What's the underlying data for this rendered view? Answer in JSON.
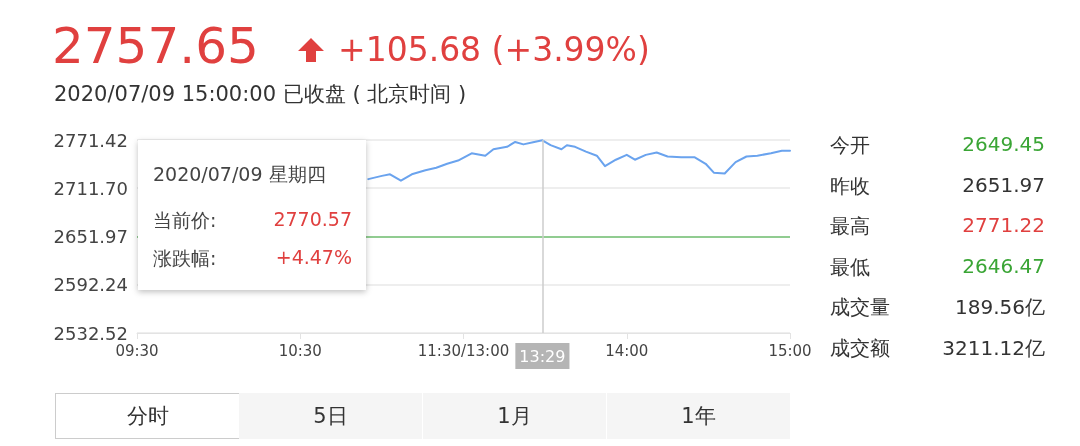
{
  "chart_data": {
    "type": "line",
    "title": "2757.65",
    "subtitle": "2020/07/09 15:00:00 已收盘 ( 北京时间 )",
    "categories": [
      "09:30",
      null,
      null,
      null,
      null,
      null,
      null,
      null,
      null,
      null,
      null,
      null,
      null,
      null,
      null,
      null,
      null,
      null,
      null,
      null,
      null,
      null,
      null,
      null,
      null,
      null,
      null,
      null,
      null,
      null,
      null,
      null,
      null,
      null,
      null,
      null,
      null,
      null,
      null,
      null,
      null,
      null,
      null,
      null,
      null,
      null,
      null,
      null,
      null,
      null,
      null,
      null,
      null,
      null,
      null,
      null,
      null,
      null,
      null,
      null,
      "10:30",
      null,
      null,
      null,
      null,
      null,
      null,
      null,
      null,
      null,
      null,
      null,
      null,
      null,
      null,
      null,
      null,
      null,
      null,
      null,
      null,
      null,
      null,
      null,
      null,
      null,
      null,
      null,
      null,
      null,
      null,
      null,
      null,
      null,
      null,
      null,
      null,
      null,
      null,
      null,
      null,
      null,
      null,
      null,
      null,
      null,
      null,
      null,
      null,
      null,
      null,
      null,
      null,
      null,
      null,
      null,
      null,
      null,
      null,
      null,
      "11:30/13:00",
      null,
      null,
      null,
      null,
      null,
      null,
      null,
      null,
      null,
      null,
      null,
      null,
      null,
      null,
      null,
      null,
      null,
      null,
      null,
      null,
      null,
      null,
      null,
      null,
      null,
      null,
      null,
      null,
      "13:29",
      null,
      null,
      null,
      null,
      null,
      null,
      null,
      null,
      null,
      null,
      null,
      null,
      null,
      null,
      null,
      null,
      null,
      null,
      null,
      null,
      null,
      null,
      null,
      null,
      null,
      null,
      null,
      null,
      null,
      null,
      "14:00",
      null,
      null,
      null,
      null,
      null,
      null,
      null,
      null,
      null,
      null,
      null,
      null,
      null,
      null,
      null,
      null,
      null,
      null,
      null,
      null,
      null,
      null,
      null,
      null,
      null,
      null,
      null,
      null,
      null,
      null,
      null,
      null,
      null,
      null,
      null,
      null,
      null,
      null,
      null,
      null,
      null,
      null,
      null,
      null,
      null,
      null,
      null,
      null,
      null,
      null,
      null,
      null,
      null,
      null,
      null,
      null,
      null,
      null,
      null,
      "15:00"
    ],
    "series": [
      {
        "color": "#6aa3ee",
        "values": [
          null,
          null,
          null,
          null,
          null,
          null,
          null,
          null,
          null,
          null,
          null,
          null,
          null,
          null,
          null,
          null,
          null,
          null,
          null,
          null,
          null,
          null,
          null,
          null,
          null,
          null,
          null,
          null,
          null,
          null,
          null,
          null,
          null,
          null,
          null,
          null,
          null,
          null,
          null,
          null,
          null,
          null,
          null,
          null,
          null,
          null,
          null,
          null,
          null,
          null,
          null,
          null,
          null,
          null,
          null,
          null,
          null,
          null,
          null,
          null,
          null,
          null,
          null,
          null,
          null,
          null,
          null,
          null,
          null,
          null,
          null,
          null,
          null,
          null,
          null,
          null,
          null,
          null,
          null,
          null,
          null,
          null,
          null,
          null,
          null,
          2723,
          null,
          null,
          null,
          null,
          2727,
          null,
          null,
          2729,
          null,
          null,
          null,
          2721,
          null,
          null,
          null,
          2729,
          null,
          null,
          null,
          null,
          2734,
          null,
          null,
          null,
          2737,
          null,
          null,
          null,
          2742,
          null,
          null,
          null,
          2746,
          null,
          null,
          null,
          null,
          2755,
          null,
          null,
          null,
          null,
          2752,
          null,
          null,
          2760,
          null,
          null,
          null,
          null,
          2763,
          null,
          null,
          2769,
          null,
          null,
          2766,
          null,
          null,
          null,
          2769,
          null,
          null,
          2771,
          null,
          null,
          2765,
          null,
          null,
          null,
          2760,
          null,
          2765,
          null,
          null,
          2763,
          null,
          null,
          null,
          2757,
          null,
          null,
          null,
          2752,
          null,
          null,
          2739,
          null,
          null,
          null,
          2747,
          null,
          null,
          null,
          2753,
          null,
          null,
          2747,
          null,
          null,
          null,
          2753,
          null,
          null,
          null,
          2756,
          null,
          null,
          null,
          2751,
          null,
          null,
          null,
          null,
          2750,
          null,
          null,
          null,
          null,
          2750,
          null,
          null,
          null,
          2742,
          null,
          null,
          2731,
          null,
          null,
          null,
          2730,
          null,
          null,
          null,
          2744,
          null,
          null,
          null,
          2751,
          null,
          null,
          null,
          2752,
          null,
          null,
          null,
          null,
          2755,
          null,
          null,
          null,
          2758,
          null,
          null,
          2758
        ]
      }
    ],
    "ylim": [
      2532.52,
      2771.42
    ],
    "yticks": [
      2532.52,
      2592.24,
      2651.97,
      {
        "value": 2711.7,
        "label": "2711.70"
      },
      2771.42
    ],
    "grid": "y",
    "marker": "none",
    "line_style": "solid",
    "ref_lines": [
      {
        "axis": "y",
        "value": 2651.97,
        "color": "#72c072"
      },
      {
        "axis": "x",
        "value": "13:29",
        "color": "#cccccc"
      }
    ],
    "annotations": [
      "+105.68 (+3.99%)",
      "2020/07/09 星期四",
      "当前价:",
      "2770.57",
      "涨跌幅:",
      "+4.47%",
      "今开",
      "2649.45",
      "昨收",
      "2651.97",
      "最高",
      "2771.22",
      "最低",
      "2646.47",
      "成交量",
      "189.56亿",
      "成交额",
      "3211.12亿",
      "分时",
      "5日",
      "1月",
      "1年"
    ]
  }
}
